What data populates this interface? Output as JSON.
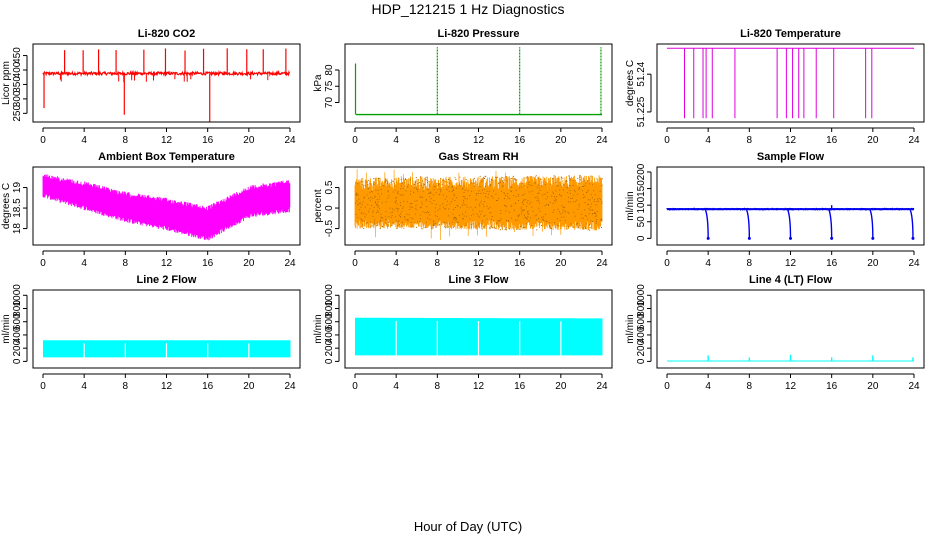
{
  "figure": {
    "title": "HDP_121215  1 Hz Diagnostics",
    "xlabel": "Hour of Day (UTC)"
  },
  "chart_data": [
    {
      "id": "co2",
      "type": "line",
      "title": "Li-820 CO2",
      "ylabel": "Licor ppm",
      "color": "#ff0000",
      "xlim": [
        0,
        24
      ],
      "ylim": [
        220,
        490
      ],
      "xticks": [
        0,
        4,
        8,
        12,
        16,
        20,
        24
      ],
      "yticks": [
        250,
        300,
        350,
        400,
        450
      ],
      "baseline": 388,
      "noise": 5,
      "spikes_up": [
        2.1,
        3.9,
        5.4,
        7.1,
        9.8,
        11.9,
        13.8,
        15.6,
        17.9,
        19.8,
        21.4,
        23.6
      ],
      "spike_up_value": 475,
      "spikes_down": [
        [
          7.9,
          245
        ],
        [
          16.2,
          215
        ],
        [
          0.1,
          268
        ]
      ]
    },
    {
      "id": "pressure",
      "type": "line",
      "title": "Li-820 Pressure",
      "ylabel": "kPa",
      "color": "#00a000",
      "xlim": [
        0,
        24
      ],
      "ylim": [
        64,
        88
      ],
      "xticks": [
        0,
        4,
        8,
        12,
        16,
        20,
        24
      ],
      "yticks": [
        70,
        75,
        80
      ],
      "baseline": 66.3,
      "spikes_up": [
        0.05,
        8.0,
        16.0,
        23.9
      ],
      "spike_up_value": 87,
      "early_value": 82
    },
    {
      "id": "temperature",
      "type": "line",
      "title": "Li-820 Temperature",
      "ylabel": "degrees C",
      "color": "#dd00dd",
      "xlim": [
        0,
        24
      ],
      "ylim": [
        51.221,
        51.252
      ],
      "xticks": [
        0,
        4,
        8,
        12,
        16,
        20,
        24
      ],
      "yticks": [
        51.225,
        51.24
      ],
      "baseline": 51.2503,
      "dips": [
        1.7,
        2.6,
        3.5,
        3.8,
        4.4,
        6.6,
        10.7,
        11.6,
        12.2,
        12.8,
        13.3,
        14.5,
        16.2,
        19.3,
        19.9
      ],
      "dip_value": 51.2225
    },
    {
      "id": "boxtemp",
      "type": "band",
      "title": "Ambient Box Temperature",
      "ylabel": "degrees C",
      "color": "#ff00ff",
      "xlim": [
        0,
        24
      ],
      "ylim": [
        17.6,
        19.5
      ],
      "xticks": [
        0,
        4,
        8,
        12,
        16,
        20,
        24
      ],
      "yticks": [
        18.0,
        18.5,
        19.0
      ],
      "upper": [
        [
          0,
          19.35
        ],
        [
          4,
          19.15
        ],
        [
          8,
          18.9
        ],
        [
          12,
          18.75
        ],
        [
          16,
          18.55
        ],
        [
          20,
          19.05
        ],
        [
          24,
          19.2
        ]
      ],
      "lower": [
        [
          0,
          18.75
        ],
        [
          4,
          18.45
        ],
        [
          8,
          18.15
        ],
        [
          12,
          17.95
        ],
        [
          16,
          17.7
        ],
        [
          20,
          18.25
        ],
        [
          24,
          18.4
        ]
      ]
    },
    {
      "id": "rh",
      "type": "band",
      "title": "Gas Stream RH",
      "ylabel": "percent",
      "color": "#ff9900",
      "xlim": [
        0,
        24
      ],
      "ylim": [
        -0.9,
        1.0
      ],
      "xticks": [
        0,
        4,
        8,
        12,
        16,
        20,
        24
      ],
      "yticks": [
        -0.5,
        0.0,
        0.5
      ],
      "upper": [
        [
          0,
          0.75
        ],
        [
          24,
          0.8
        ]
      ],
      "lower": [
        [
          0,
          -0.5
        ],
        [
          24,
          -0.55
        ]
      ],
      "outlier_low": -0.8,
      "outlier_high": 0.95
    },
    {
      "id": "sample",
      "type": "line",
      "title": "Sample Flow",
      "ylabel": "ml/min",
      "color": "#0000ee",
      "xlim": [
        0,
        24
      ],
      "ylim": [
        -20,
        215
      ],
      "xticks": [
        0,
        4,
        8,
        12,
        16,
        20,
        24
      ],
      "yticks": [
        0,
        50,
        100,
        150,
        200
      ],
      "baseline": 88,
      "noise": 4,
      "dips": [
        4.0,
        8.0,
        12.0,
        16.0,
        20.0,
        23.9
      ],
      "dip_value": 0
    },
    {
      "id": "line2",
      "type": "band",
      "title": "Line 2 Flow",
      "ylabel": "ml/min",
      "color": "#00ffff",
      "xlim": [
        0,
        24
      ],
      "ylim": [
        -100,
        1080
      ],
      "xticks": [
        0,
        4,
        8,
        12,
        16,
        20,
        24
      ],
      "yticks": [
        0,
        200,
        400,
        600,
        800,
        1000
      ],
      "upper": [
        [
          0,
          320
        ],
        [
          24,
          320
        ]
      ],
      "lower": [
        [
          0,
          60
        ],
        [
          24,
          60
        ]
      ],
      "gaps": [
        4,
        8,
        12,
        16,
        20
      ]
    },
    {
      "id": "line3",
      "type": "band",
      "title": "Line 3 Flow",
      "ylabel": "ml/min",
      "color": "#00ffff",
      "xlim": [
        0,
        24
      ],
      "ylim": [
        -100,
        1080
      ],
      "xticks": [
        0,
        4,
        8,
        12,
        16,
        20,
        24
      ],
      "yticks": [
        0,
        200,
        400,
        600,
        800,
        1000
      ],
      "upper": [
        [
          0,
          660
        ],
        [
          24,
          650
        ]
      ],
      "lower": [
        [
          0,
          90
        ],
        [
          24,
          90
        ]
      ],
      "gaps": [
        4,
        8,
        12,
        16,
        20
      ]
    },
    {
      "id": "line4",
      "type": "line",
      "title": "Line 4 (LT) Flow",
      "ylabel": "ml/min",
      "color": "#00ffff",
      "xlim": [
        0,
        24
      ],
      "ylim": [
        -100,
        1080
      ],
      "xticks": [
        0,
        4,
        8,
        12,
        16,
        20,
        24
      ],
      "yticks": [
        0,
        200,
        400,
        600,
        800,
        1000
      ],
      "baseline": 5,
      "spikes_up": [
        4.0,
        8.0,
        12.0,
        16.0,
        20.0,
        23.9
      ],
      "spike_values": [
        90,
        60,
        100,
        60,
        90,
        60
      ]
    }
  ]
}
